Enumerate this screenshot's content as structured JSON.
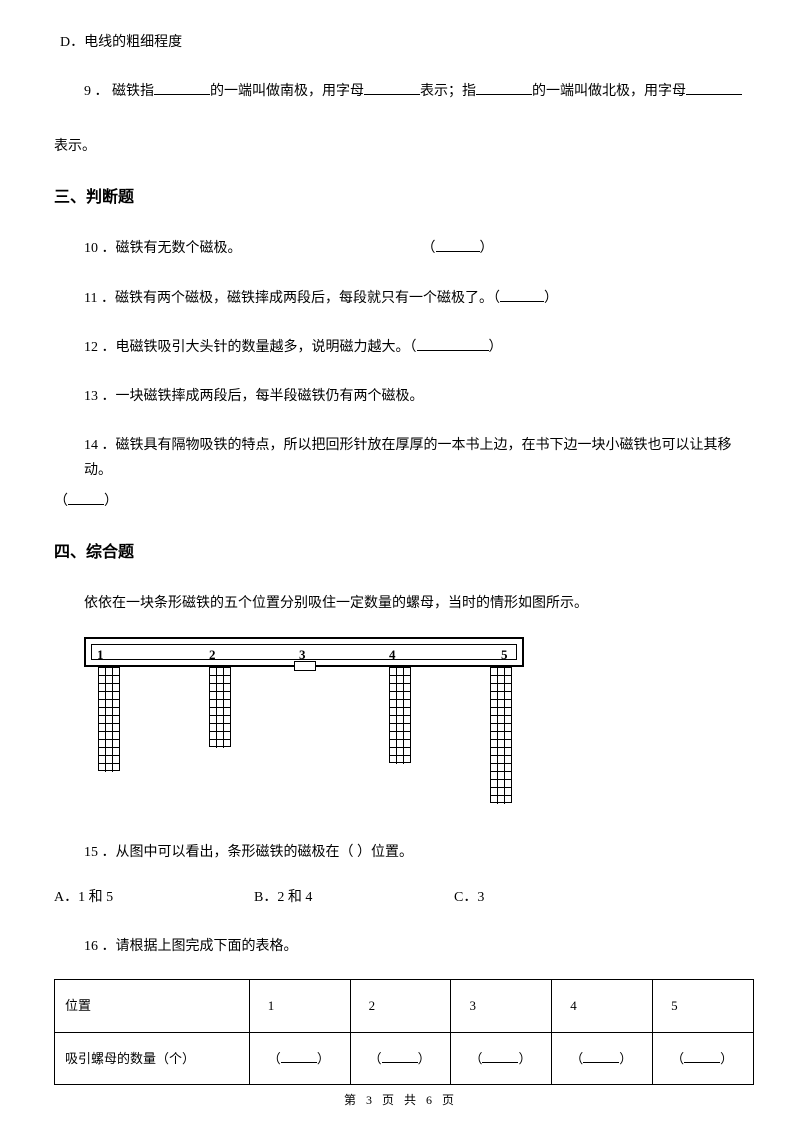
{
  "lineD": "D．电线的粗细程度",
  "q9_part1": "9 ．  磁铁指",
  "q9_part2": "的一端叫做南极，用字母",
  "q9_part3": "表示；指",
  "q9_part4": "的一端叫做北极，用字母",
  "q9_cont": "表示。",
  "section3": "三、判断题",
  "q10": "10 ．磁铁有无数个磁极。",
  "q11": "11 ．磁铁有两个磁极，磁铁摔成两段后，每段就只有一个磁极了。（",
  "q11_end": "）",
  "q12": "12 ．电磁铁吸引大头针的数量越多，说明磁力越大。（",
  "q12_end": "）",
  "q13": "13 ．一块磁铁摔成两段后，每半段磁铁仍有两个磁极。",
  "q14": "14 ．磁铁具有隔物吸铁的特点，所以把回形针放在厚厚的一本书上边，在书下边一块小磁铁也可以让其移动。",
  "q14_cont_l": "（",
  "q14_cont_r": "）",
  "section4": "四、综合题",
  "zh_intro": "依依在一块条形磁铁的五个位置分别吸住一定数量的螺母，当时的情形如图所示。",
  "diagram": {
    "labels": [
      "1",
      "2",
      "3",
      "4",
      "5"
    ],
    "col_cells": {
      "c1": 13,
      "c2": 10,
      "c4": 12,
      "c5": 17
    }
  },
  "q15": "15 ．从图中可以看出，条形磁铁的磁极在（    ）位置。",
  "opts": {
    "a": "A．1 和 5",
    "b": "B．2 和 4",
    "c": "C．3"
  },
  "q16": "16 ．请根据上图完成下面的表格。",
  "table": {
    "row1_label": "位置",
    "row1_vals": [
      "1",
      "2",
      "3",
      "4",
      "5"
    ],
    "row2_label": "吸引螺母的数量（个）",
    "row2_cell_l": "（",
    "row2_cell_r": "）"
  },
  "footer": {
    "p1": "第",
    "p2": "3",
    "p3": "页",
    "p4": "共",
    "p5": "6",
    "p6": "页"
  },
  "colors": {
    "text": "#000000",
    "bg": "#ffffff",
    "border": "#000000"
  }
}
